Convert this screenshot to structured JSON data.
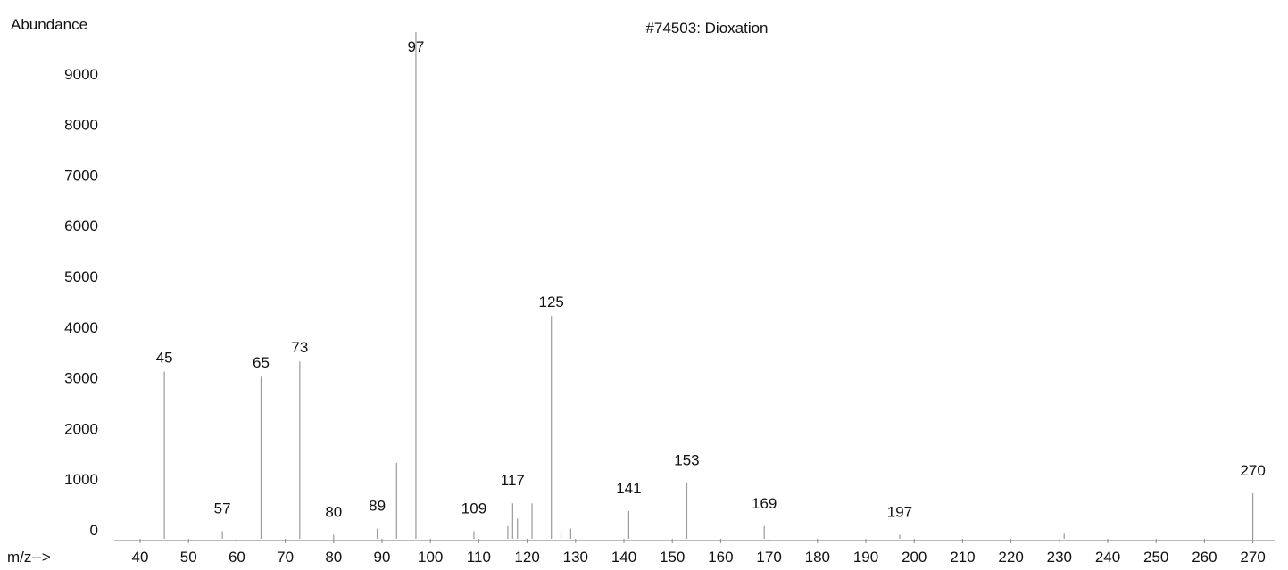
{
  "chart_data": {
    "type": "bar",
    "title": "#74503: Dioxation",
    "ylabel": "Abundance",
    "xlabel": "m/z-->",
    "xlim": [
      40,
      275
    ],
    "ylim": [
      0,
      10000
    ],
    "x_ticks": [
      "40",
      "50",
      "60",
      "70",
      "80",
      "90",
      "100",
      "110",
      "120",
      "130",
      "140",
      "150",
      "160",
      "170",
      "180",
      "190",
      "200",
      "210",
      "220",
      "230",
      "240",
      "250",
      "260",
      "270"
    ],
    "y_ticks": [
      "0",
      "1000",
      "2000",
      "3000",
      "4000",
      "5000",
      "6000",
      "7000",
      "8000",
      "9000"
    ],
    "peaks": [
      {
        "mz": 45,
        "abundance": 3300,
        "label": "45"
      },
      {
        "mz": 57,
        "abundance": 150,
        "label": "57"
      },
      {
        "mz": 65,
        "abundance": 3200,
        "label": "65"
      },
      {
        "mz": 73,
        "abundance": 3500,
        "label": "73"
      },
      {
        "mz": 80,
        "abundance": 80,
        "label": "80"
      },
      {
        "mz": 89,
        "abundance": 200,
        "label": "89"
      },
      {
        "mz": 93,
        "abundance": 1500,
        "label": ""
      },
      {
        "mz": 97,
        "abundance": 10000,
        "label": "97"
      },
      {
        "mz": 109,
        "abundance": 150,
        "label": "109"
      },
      {
        "mz": 116,
        "abundance": 250,
        "label": ""
      },
      {
        "mz": 117,
        "abundance": 700,
        "label": "117"
      },
      {
        "mz": 118,
        "abundance": 400,
        "label": ""
      },
      {
        "mz": 121,
        "abundance": 700,
        "label": ""
      },
      {
        "mz": 125,
        "abundance": 4400,
        "label": "125"
      },
      {
        "mz": 127,
        "abundance": 150,
        "label": ""
      },
      {
        "mz": 129,
        "abundance": 200,
        "label": ""
      },
      {
        "mz": 141,
        "abundance": 550,
        "label": "141"
      },
      {
        "mz": 153,
        "abundance": 1100,
        "label": "153"
      },
      {
        "mz": 169,
        "abundance": 250,
        "label": "169"
      },
      {
        "mz": 197,
        "abundance": 80,
        "label": "197"
      },
      {
        "mz": 231,
        "abundance": 100,
        "label": ""
      },
      {
        "mz": 270,
        "abundance": 900,
        "label": "270"
      }
    ]
  }
}
